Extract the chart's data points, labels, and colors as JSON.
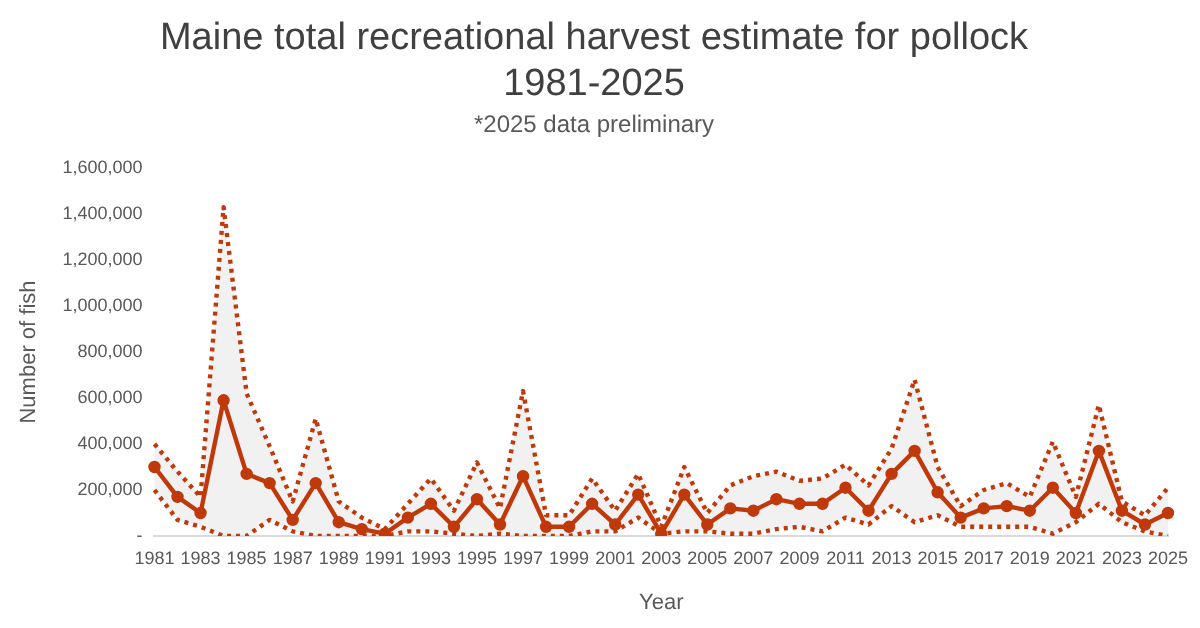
{
  "chart_data": {
    "type": "line",
    "title": "Maine total recreational harvest estimate for pollock\n1981-2025",
    "subtitle": "*2025 data preliminary",
    "xlabel": "Year",
    "ylabel": "Number of fish",
    "categories": [
      "1981",
      null,
      "1983",
      null,
      "1985",
      null,
      "1987",
      null,
      "1989",
      null,
      "1991",
      null,
      "1993",
      null,
      "1995",
      null,
      "1997",
      null,
      "1999",
      null,
      "2001",
      null,
      "2003",
      null,
      "2005",
      null,
      "2007",
      null,
      "2009",
      null,
      "2011",
      null,
      "2013",
      null,
      "2015",
      null,
      "2017",
      null,
      "2019",
      null,
      "2021",
      null,
      "2023",
      null,
      "2025"
    ],
    "series": [
      {
        "color": "#c0390b",
        "marker": "circle",
        "line_style": "solid",
        "values": [
          300000,
          170000,
          100000,
          590000,
          270000,
          230000,
          70000,
          230000,
          60000,
          30000,
          10000,
          80000,
          140000,
          40000,
          160000,
          50000,
          260000,
          40000,
          40000,
          140000,
          50000,
          180000,
          10000,
          180000,
          50000,
          120000,
          110000,
          160000,
          140000,
          140000,
          210000,
          110000,
          270000,
          370000,
          190000,
          80000,
          120000,
          130000,
          110000,
          210000,
          100000,
          370000,
          110000,
          50000,
          100000
        ],
        "upper": [
          400000,
          280000,
          170000,
          1430000,
          620000,
          390000,
          150000,
          510000,
          150000,
          80000,
          30000,
          140000,
          250000,
          110000,
          320000,
          120000,
          630000,
          90000,
          90000,
          250000,
          110000,
          270000,
          40000,
          300000,
          100000,
          220000,
          260000,
          280000,
          240000,
          250000,
          310000,
          220000,
          380000,
          680000,
          300000,
          130000,
          200000,
          230000,
          170000,
          410000,
          170000,
          570000,
          150000,
          90000,
          210000
        ],
        "lower": [
          200000,
          70000,
          40000,
          0,
          0,
          70000,
          20000,
          0,
          0,
          0,
          0,
          20000,
          20000,
          10000,
          0,
          10000,
          0,
          0,
          0,
          20000,
          20000,
          80000,
          10000,
          20000,
          20000,
          10000,
          10000,
          30000,
          40000,
          20000,
          80000,
          50000,
          130000,
          60000,
          90000,
          40000,
          40000,
          40000,
          40000,
          10000,
          60000,
          140000,
          60000,
          20000,
          0
        ]
      },
      {
        "color": "#c0390b",
        "marker": "none",
        "line_style": "dotted",
        "values": [
          400000,
          280000,
          170000,
          1430000,
          620000,
          390000,
          150000,
          510000,
          150000,
          80000,
          30000,
          140000,
          250000,
          110000,
          320000,
          120000,
          630000,
          90000,
          90000,
          250000,
          110000,
          270000,
          40000,
          300000,
          100000,
          220000,
          260000,
          280000,
          240000,
          250000,
          310000,
          220000,
          380000,
          680000,
          300000,
          130000,
          200000,
          230000,
          170000,
          410000,
          170000,
          570000,
          150000,
          90000,
          210000
        ]
      },
      {
        "color": "#c0390b",
        "marker": "none",
        "line_style": "dotted",
        "values": [
          200000,
          70000,
          40000,
          0,
          0,
          70000,
          20000,
          0,
          0,
          0,
          0,
          20000,
          20000,
          10000,
          0,
          10000,
          0,
          0,
          0,
          20000,
          20000,
          80000,
          10000,
          20000,
          20000,
          10000,
          10000,
          30000,
          40000,
          20000,
          80000,
          50000,
          130000,
          60000,
          90000,
          40000,
          40000,
          40000,
          40000,
          10000,
          60000,
          140000,
          60000,
          20000,
          0
        ]
      }
    ],
    "ylim": [
      0,
      1600000
    ],
    "yticks": [
      {
        "value": 0,
        "label": "-"
      },
      {
        "value": 200000,
        "label": "200,000"
      },
      {
        "value": 400000,
        "label": "400,000"
      },
      {
        "value": 600000,
        "label": "600,000"
      },
      {
        "value": 800000,
        "label": "800,000"
      },
      {
        "value": 1000000,
        "label": "1,000,000"
      },
      {
        "value": 1200000,
        "label": "1,200,000"
      },
      {
        "value": 1400000,
        "label": "1,400,000"
      },
      {
        "value": 1600000,
        "label": "1,600,000"
      }
    ],
    "grid": false,
    "legend": false
  }
}
